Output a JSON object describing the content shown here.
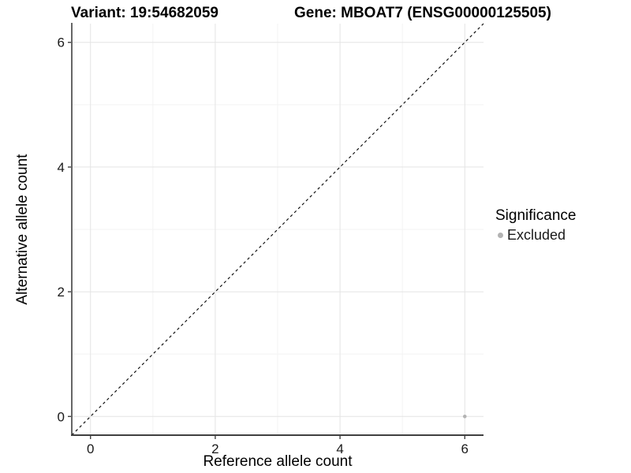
{
  "figure": {
    "title_left": "Variant: 19:54682059",
    "title_right": "Gene: MBOAT7 (ENSG00000125505)"
  },
  "legend": {
    "title": "Significance",
    "items": [
      {
        "label": "Excluded",
        "color": "#b3b3b3"
      }
    ]
  },
  "colors": {
    "background": "#ffffff",
    "grid_major": "#e4e4e4",
    "grid_minor": "#f3f3f3",
    "axis_line": "#404040",
    "tick_text": "#1a1a1a",
    "title_text": "#000000",
    "point": "#b3b3b3",
    "reference_line": "#000000"
  },
  "chart_data": {
    "type": "scatter",
    "title": "Variant: 19:54682059    Gene: MBOAT7 (ENSG00000125505)",
    "xlabel": "Reference allele count",
    "ylabel": "Alternative allele count",
    "xlim": [
      -0.3,
      6.3
    ],
    "ylim": [
      -0.3,
      6.3
    ],
    "x_ticks": [
      0,
      2,
      4,
      6
    ],
    "y_ticks": [
      0,
      2,
      4,
      6
    ],
    "minor_ticks": [
      1,
      3,
      5
    ],
    "grid": true,
    "series": [
      {
        "name": "Excluded",
        "color": "#b3b3b3",
        "points": [
          [
            6,
            0
          ]
        ]
      }
    ],
    "reference_line": {
      "kind": "identity",
      "style": "dashed",
      "color": "#000000"
    },
    "legend": {
      "title": "Significance",
      "position": "right",
      "entries": [
        "Excluded"
      ]
    }
  }
}
